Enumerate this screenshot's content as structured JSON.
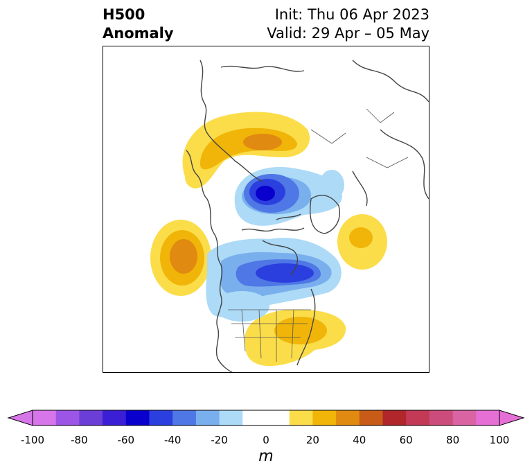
{
  "header": {
    "title_line1": "H500",
    "title_line2": "Anomaly",
    "init": "Init: Thu 06 Apr 2023",
    "valid": "Valid: 29 Apr – 05 May"
  },
  "colorbar": {
    "units": "m",
    "tick_labels": [
      "-100",
      "-80",
      "-60",
      "-40",
      "-20",
      "0",
      "20",
      "40",
      "60",
      "80",
      "100"
    ],
    "colors": [
      "#d676e8",
      "#9c55e4",
      "#6b3ed8",
      "#3b1fd6",
      "#0a00cd",
      "#2b3fdf",
      "#4f77e5",
      "#79afed",
      "#acdaf7",
      "#ffffff",
      "#ffffff",
      "#fbdd4a",
      "#f0b508",
      "#e08a11",
      "#c85b18",
      "#b0262a",
      "#c23a56",
      "#cc4c7b",
      "#d963a3",
      "#e56fd5"
    ],
    "over_color": "#e56fd5",
    "under_color": "#d676e8"
  },
  "map": {
    "projection": "polar stereographic (North America)",
    "basemap": "country and state borders"
  }
}
